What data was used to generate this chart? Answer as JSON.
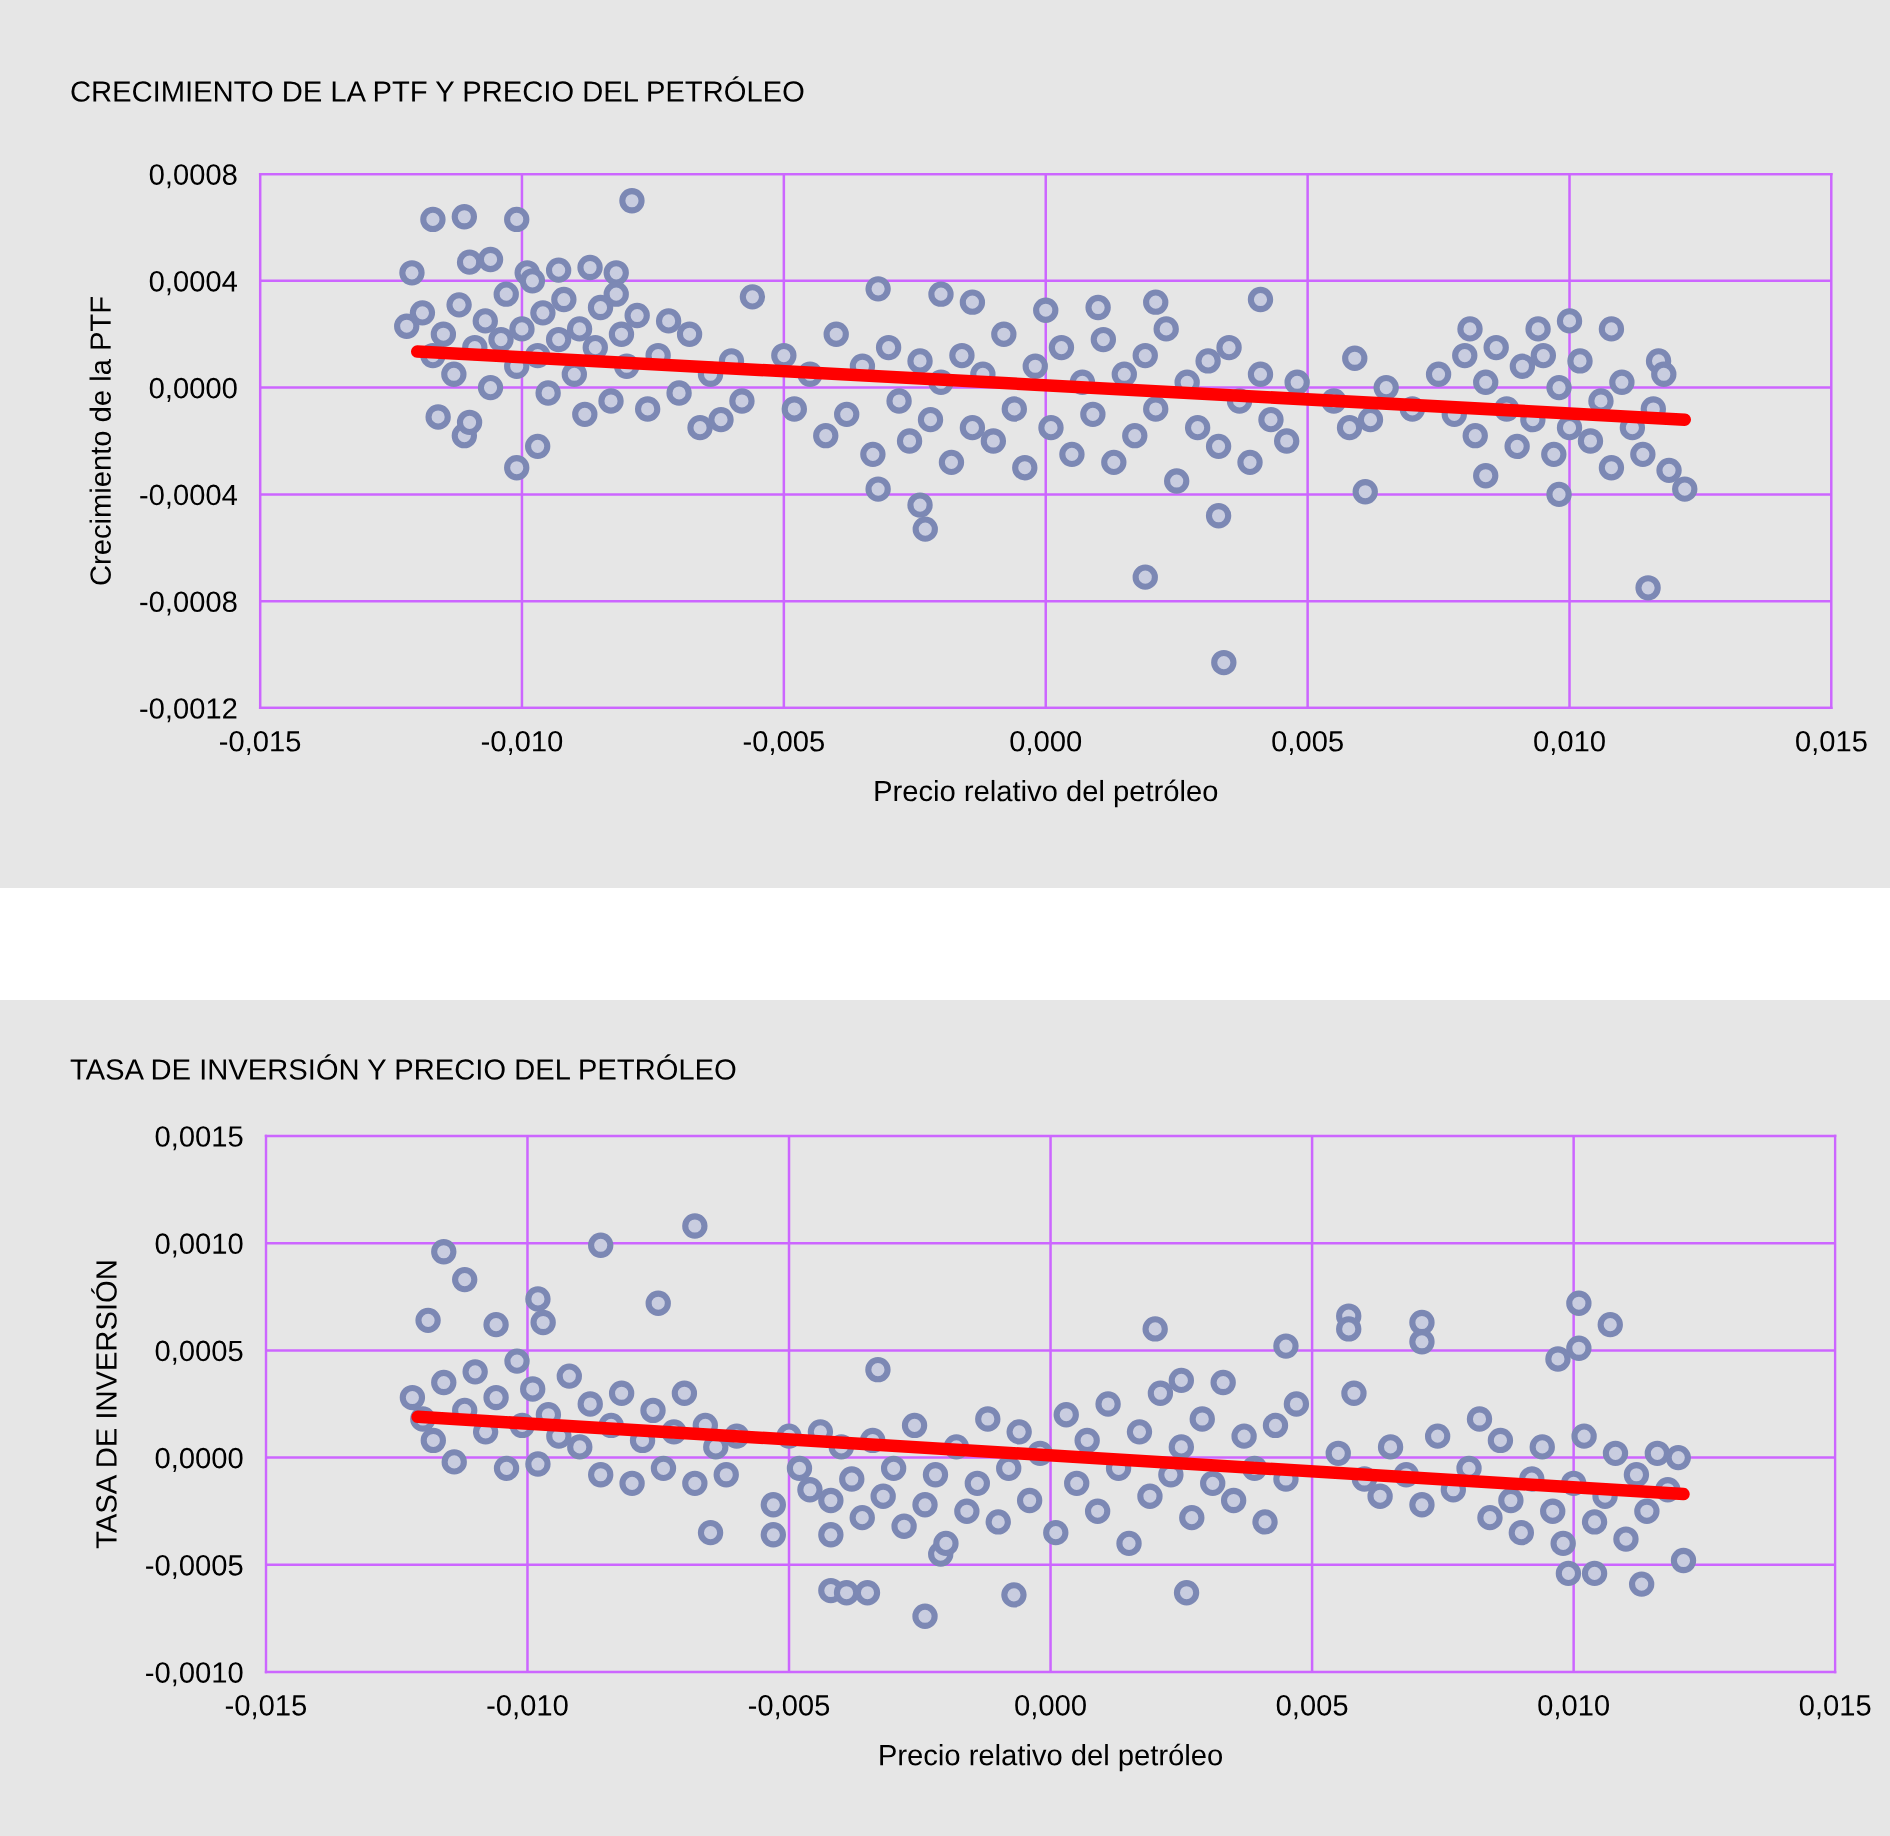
{
  "chart_data": [
    {
      "type": "scatter",
      "title": "CRECIMIENTO DE LA PTF Y PRECIO DEL PETRÓLEO",
      "xlabel": "Precio relativo del petróleo",
      "ylabel": "Crecimiento de la PTF",
      "xlim": [
        -0.015,
        0.015
      ],
      "ylim": [
        -0.0012,
        0.0008
      ],
      "xticks": [
        {
          "value": -0.015,
          "label": "-0,015"
        },
        {
          "value": -0.01,
          "label": "-0,010"
        },
        {
          "value": -0.005,
          "label": "-0,005"
        },
        {
          "value": 0,
          "label": "0,000"
        },
        {
          "value": 0.005,
          "label": "0,005"
        },
        {
          "value": 0.01,
          "label": "0,010"
        },
        {
          "value": 0.015,
          "label": "0,015"
        }
      ],
      "yticks": [
        {
          "value": -0.0012,
          "label": "-0,0012"
        },
        {
          "value": -0.0008,
          "label": "-0,0008"
        },
        {
          "value": -0.0004,
          "label": "-0,0004"
        },
        {
          "value": 0,
          "label": "0,0000"
        },
        {
          "value": 0.0004,
          "label": "0,0004"
        },
        {
          "value": 0.0008,
          "label": "0,0008"
        }
      ],
      "grid": true,
      "marker": "circle",
      "legend": false,
      "series": [
        {
          "type": "scatter",
          "color": "#7c88b4",
          "x": [
            -0.0117,
            -0.0111,
            -0.0101,
            -0.0079,
            -0.0121,
            -0.011,
            -0.0106,
            -0.0099,
            -0.0101,
            -0.0097,
            -0.0116,
            -0.0111,
            -0.011,
            -0.0093,
            -0.0087,
            -0.0082,
            -0.0082,
            -0.0056,
            -0.0032,
            -0.0032,
            -0.0024,
            -0.0023,
            0.0019,
            0.0034,
            0.0033,
            0.0061,
            0.0084,
            0.0098,
            0.0115,
            0.0122,
            0.0119,
            0.0108,
            0.01,
            0.0094,
            0.0117,
            0.0118,
            0.0,
            0.001,
            0.0021,
            0.0041,
            -0.002,
            -0.0014,
            0.0059,
            0.0081,
            -0.0122,
            -0.0119,
            -0.0117,
            -0.0115,
            -0.0113,
            -0.0112,
            -0.0109,
            -0.0107,
            -0.0106,
            -0.0104,
            -0.0103,
            -0.0101,
            -0.01,
            -0.0098,
            -0.0097,
            -0.0096,
            -0.0095,
            -0.0093,
            -0.0092,
            -0.009,
            -0.0089,
            -0.0088,
            -0.0086,
            -0.0085,
            -0.0083,
            -0.0081,
            -0.008,
            -0.0078,
            -0.0076,
            -0.0074,
            -0.0072,
            -0.007,
            -0.0068,
            -0.0066,
            -0.0064,
            -0.0062,
            -0.006,
            -0.0058,
            -0.005,
            -0.0048,
            -0.0045,
            -0.0042,
            -0.004,
            -0.0038,
            -0.0035,
            -0.0033,
            -0.003,
            -0.0028,
            -0.0026,
            -0.0024,
            -0.0022,
            -0.002,
            -0.0018,
            -0.0016,
            -0.0014,
            -0.0012,
            -0.001,
            -0.0008,
            -0.0006,
            -0.0004,
            -0.0002,
            0.0001,
            0.0003,
            0.0005,
            0.0007,
            0.0009,
            0.0011,
            0.0013,
            0.0015,
            0.0017,
            0.0019,
            0.0021,
            0.0023,
            0.0025,
            0.0027,
            0.0029,
            0.0031,
            0.0033,
            0.0035,
            0.0037,
            0.0039,
            0.0041,
            0.0043,
            0.0046,
            0.0048,
            0.0055,
            0.0058,
            0.0062,
            0.0065,
            0.007,
            0.0075,
            0.0078,
            0.008,
            0.0082,
            0.0084,
            0.0086,
            0.0088,
            0.009,
            0.0091,
            0.0093,
            0.0095,
            0.0097,
            0.0098,
            0.01,
            0.0102,
            0.0104,
            0.0106,
            0.0108,
            0.011,
            0.0112,
            0.0114,
            0.0116
          ],
          "values": [
            0.00063,
            0.00064,
            0.00063,
            0.0007,
            0.00043,
            0.00047,
            0.00048,
            0.00043,
            -0.0003,
            -0.00022,
            -0.00011,
            -0.00018,
            -0.00013,
            0.00044,
            0.00045,
            0.00043,
            0.00035,
            0.00034,
            0.00037,
            -0.00038,
            -0.00044,
            -0.00053,
            -0.00071,
            -0.00103,
            -0.00048,
            -0.00039,
            -0.00033,
            -0.0004,
            -0.00075,
            -0.00038,
            -0.00031,
            0.00022,
            0.00025,
            0.00022,
            0.0001,
            5e-05,
            0.00029,
            0.0003,
            0.00032,
            0.00033,
            0.00035,
            0.00032,
            0.00011,
            0.00022,
            0.00023,
            0.00028,
            0.00012,
            0.0002,
            5e-05,
            0.00031,
            0.00015,
            0.00025,
            0.0,
            0.00018,
            0.00035,
            8e-05,
            0.00022,
            0.0004,
            0.00012,
            0.00028,
            -2e-05,
            0.00018,
            0.00033,
            5e-05,
            0.00022,
            -0.0001,
            0.00015,
            0.0003,
            -5e-05,
            0.0002,
            8e-05,
            0.00027,
            -8e-05,
            0.00012,
            0.00025,
            -2e-05,
            0.0002,
            -0.00015,
            5e-05,
            -0.00012,
            0.0001,
            -5e-05,
            0.00012,
            -8e-05,
            5e-05,
            -0.00018,
            0.0002,
            -0.0001,
            8e-05,
            -0.00025,
            0.00015,
            -5e-05,
            -0.0002,
            0.0001,
            -0.00012,
            2e-05,
            -0.00028,
            0.00012,
            -0.00015,
            5e-05,
            -0.0002,
            0.0002,
            -8e-05,
            -0.0003,
            8e-05,
            -0.00015,
            0.00015,
            -0.00025,
            2e-05,
            -0.0001,
            0.00018,
            -0.00028,
            5e-05,
            -0.00018,
            0.00012,
            -8e-05,
            0.00022,
            -0.00035,
            2e-05,
            -0.00015,
            0.0001,
            -0.00022,
            0.00015,
            -5e-05,
            -0.00028,
            5e-05,
            -0.00012,
            -0.0002,
            2e-05,
            -5e-05,
            -0.00015,
            -0.00012,
            0.0,
            -8e-05,
            5e-05,
            -0.0001,
            0.00012,
            -0.00018,
            2e-05,
            0.00015,
            -8e-05,
            -0.00022,
            8e-05,
            -0.00012,
            0.00012,
            -0.00025,
            0.0,
            -0.00015,
            0.0001,
            -0.0002,
            -5e-05,
            -0.0003,
            2e-05,
            -0.00015,
            -0.00025,
            -8e-05
          ]
        },
        {
          "type": "line",
          "marker": "none",
          "color": "#ff0000",
          "x": [
            -0.012,
            0.0122
          ],
          "values": [
            0.000135,
            -0.00012
          ]
        }
      ]
    },
    {
      "type": "scatter",
      "title": "TASA DE INVERSIÓN Y PRECIO DEL PETRÓLEO",
      "xlabel": "Precio relativo del petróleo",
      "ylabel": "TASA DE INVERSIÓN",
      "xlim": [
        -0.015,
        0.015
      ],
      "ylim": [
        -0.001,
        0.0015
      ],
      "xticks": [
        {
          "value": -0.015,
          "label": "-0,015"
        },
        {
          "value": -0.01,
          "label": "-0,010"
        },
        {
          "value": -0.005,
          "label": "-0,005"
        },
        {
          "value": 0,
          "label": "0,000"
        },
        {
          "value": 0.005,
          "label": "0,005"
        },
        {
          "value": 0.01,
          "label": "0,010"
        },
        {
          "value": 0.015,
          "label": "0,015"
        }
      ],
      "yticks": [
        {
          "value": -0.001,
          "label": "-0,0010"
        },
        {
          "value": -0.0005,
          "label": "-0,0005"
        },
        {
          "value": 0,
          "label": "0,0000"
        },
        {
          "value": 0.0005,
          "label": "0,0005"
        },
        {
          "value": 0.001,
          "label": "0,0010"
        },
        {
          "value": 0.0015,
          "label": "0,0015"
        }
      ],
      "grid": true,
      "marker": "circle",
      "legend": false,
      "series": [
        {
          "type": "scatter",
          "color": "#7c88b4",
          "x": [
            -0.0116,
            -0.0112,
            -0.0119,
            -0.0086,
            -0.0068,
            -0.0075,
            -0.0098,
            -0.0097,
            -0.0106,
            -0.0065,
            -0.0053,
            -0.0053,
            -0.0042,
            -0.0042,
            -0.0039,
            -0.0035,
            -0.0024,
            -0.0033,
            -0.0007,
            -0.0021,
            0.002,
            0.0026,
            0.0057,
            0.0057,
            0.0071,
            0.0071,
            0.0101,
            0.0101,
            0.0107,
            0.0097,
            0.0121,
            0.0113,
            0.0099,
            0.0104,
            0.0025,
            0.0045,
            -0.0122,
            -0.012,
            -0.0118,
            -0.0116,
            -0.0114,
            -0.0112,
            -0.011,
            -0.0108,
            -0.0106,
            -0.0104,
            -0.0102,
            -0.0101,
            -0.0099,
            -0.0098,
            -0.0096,
            -0.0094,
            -0.0092,
            -0.009,
            -0.0088,
            -0.0086,
            -0.0084,
            -0.0082,
            -0.008,
            -0.0078,
            -0.0076,
            -0.0074,
            -0.0072,
            -0.007,
            -0.0068,
            -0.0066,
            -0.0064,
            -0.0062,
            -0.006,
            -0.005,
            -0.0048,
            -0.0046,
            -0.0044,
            -0.0042,
            -0.004,
            -0.0038,
            -0.0036,
            -0.0034,
            -0.0032,
            -0.003,
            -0.0028,
            -0.0026,
            -0.0024,
            -0.0022,
            -0.002,
            -0.0018,
            -0.0016,
            -0.0014,
            -0.0012,
            -0.001,
            -0.0008,
            -0.0006,
            -0.0004,
            -0.0002,
            0.0001,
            0.0003,
            0.0005,
            0.0007,
            0.0009,
            0.0011,
            0.0013,
            0.0015,
            0.0017,
            0.0019,
            0.0021,
            0.0023,
            0.0025,
            0.0027,
            0.0029,
            0.0031,
            0.0033,
            0.0035,
            0.0037,
            0.0039,
            0.0041,
            0.0043,
            0.0045,
            0.0047,
            0.0055,
            0.0058,
            0.006,
            0.0063,
            0.0065,
            0.0068,
            0.0071,
            0.0074,
            0.0077,
            0.008,
            0.0082,
            0.0084,
            0.0086,
            0.0088,
            0.009,
            0.0092,
            0.0094,
            0.0096,
            0.0098,
            0.01,
            0.0102,
            0.0104,
            0.0106,
            0.0108,
            0.011,
            0.0112,
            0.0114,
            0.0116,
            0.0118,
            0.012
          ],
          "values": [
            0.00096,
            0.00083,
            0.00064,
            0.00099,
            0.00108,
            0.00072,
            0.00074,
            0.00063,
            0.00062,
            -0.00035,
            -0.00036,
            -0.00022,
            -0.00036,
            -0.00062,
            -0.00063,
            -0.00063,
            -0.00074,
            0.00041,
            -0.00064,
            -0.00045,
            0.0006,
            -0.00063,
            0.00066,
            0.0006,
            0.00063,
            0.00054,
            0.00072,
            0.00051,
            0.00062,
            0.00046,
            -0.00048,
            -0.00059,
            -0.00054,
            -0.00054,
            0.00036,
            0.00052,
            0.00028,
            0.00018,
            8e-05,
            0.00035,
            -2e-05,
            0.00022,
            0.0004,
            0.00012,
            0.00028,
            -5e-05,
            0.00045,
            0.00015,
            0.00032,
            -3e-05,
            0.0002,
            0.0001,
            0.00038,
            5e-05,
            0.00025,
            -8e-05,
            0.00015,
            0.0003,
            -0.00012,
            8e-05,
            0.00022,
            -5e-05,
            0.00012,
            0.0003,
            -0.00012,
            0.00015,
            5e-05,
            -8e-05,
            0.0001,
            0.0001,
            -5e-05,
            -0.00015,
            0.00012,
            -0.0002,
            5e-05,
            -0.0001,
            -0.00028,
            8e-05,
            -0.00018,
            -5e-05,
            -0.00032,
            0.00015,
            -0.00022,
            -8e-05,
            -0.0004,
            5e-05,
            -0.00025,
            -0.00012,
            0.00018,
            -0.0003,
            -5e-05,
            0.00012,
            -0.0002,
            2e-05,
            -0.00035,
            0.0002,
            -0.00012,
            8e-05,
            -0.00025,
            0.00025,
            -5e-05,
            -0.0004,
            0.00012,
            -0.00018,
            0.0003,
            -8e-05,
            5e-05,
            -0.00028,
            0.00018,
            -0.00012,
            0.00035,
            -0.0002,
            0.0001,
            -5e-05,
            -0.0003,
            0.00015,
            -0.0001,
            0.00025,
            2e-05,
            0.0003,
            -0.0001,
            -0.00018,
            5e-05,
            -8e-05,
            -0.00022,
            0.0001,
            -0.00015,
            -5e-05,
            0.00018,
            -0.00028,
            8e-05,
            -0.0002,
            -0.00035,
            -0.0001,
            5e-05,
            -0.00025,
            -0.0004,
            -0.00012,
            0.0001,
            -0.0003,
            -0.00018,
            2e-05,
            -0.00038,
            -8e-05,
            -0.00025,
            2e-05,
            -0.00015,
            0.0
          ]
        },
        {
          "type": "line",
          "marker": "none",
          "color": "#ff0000",
          "x": [
            -0.0121,
            0.0121
          ],
          "values": [
            0.00019,
            -0.00017
          ]
        }
      ]
    }
  ]
}
